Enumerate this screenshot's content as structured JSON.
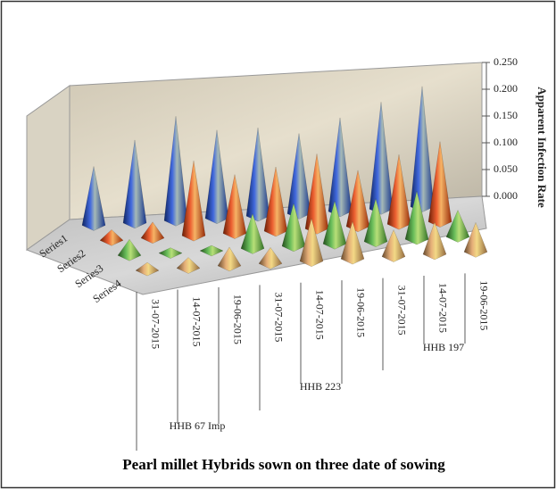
{
  "chart_data": {
    "type": "pyramid3d",
    "title": "Pearl millet Hybrids sown on three date of sowing",
    "y_label": "Apparent Infection Rate",
    "categories": [
      "31-07-2015",
      "14-07-2015",
      "19-06-2015",
      "31-07-2015",
      "14-07-2015",
      "19-06-2015",
      "31-07-2015",
      "14-07-2015",
      "19-06-2015"
    ],
    "category_groups": [
      "HHB 67 Imp",
      "HHB 223",
      "HHB 197"
    ],
    "series": [
      {
        "name": "Series1",
        "color": "#1f4fd8",
        "values": [
          0.11,
          0.155,
          0.195,
          0.165,
          0.165,
          0.15,
          0.175,
          0.2,
          0.225
        ]
      },
      {
        "name": "Series2",
        "color": "#e8400c",
        "values": [
          0.02,
          0.03,
          0.14,
          0.11,
          0.12,
          0.14,
          0.105,
          0.13,
          0.15
        ]
      },
      {
        "name": "Series3",
        "color": "#4caf3c",
        "values": [
          0.03,
          0.01,
          0.01,
          0.065,
          0.08,
          0.08,
          0.08,
          0.09,
          0.05
        ]
      },
      {
        "name": "Series4",
        "color": "#e0a060",
        "values": [
          0.015,
          0.02,
          0.035,
          0.03,
          0.08,
          0.07,
          0.05,
          0.06,
          0.055
        ]
      }
    ],
    "ylim": [
      0,
      0.25
    ],
    "yticks": [
      {
        "value": 0,
        "label": "0.000"
      },
      {
        "value": 0.05,
        "label": "0.050"
      },
      {
        "value": 0.1,
        "label": "0.100"
      },
      {
        "value": 0.15,
        "label": "0.150"
      },
      {
        "value": 0.2,
        "label": "0.200"
      },
      {
        "value": 0.25,
        "label": "0.250"
      }
    ]
  }
}
